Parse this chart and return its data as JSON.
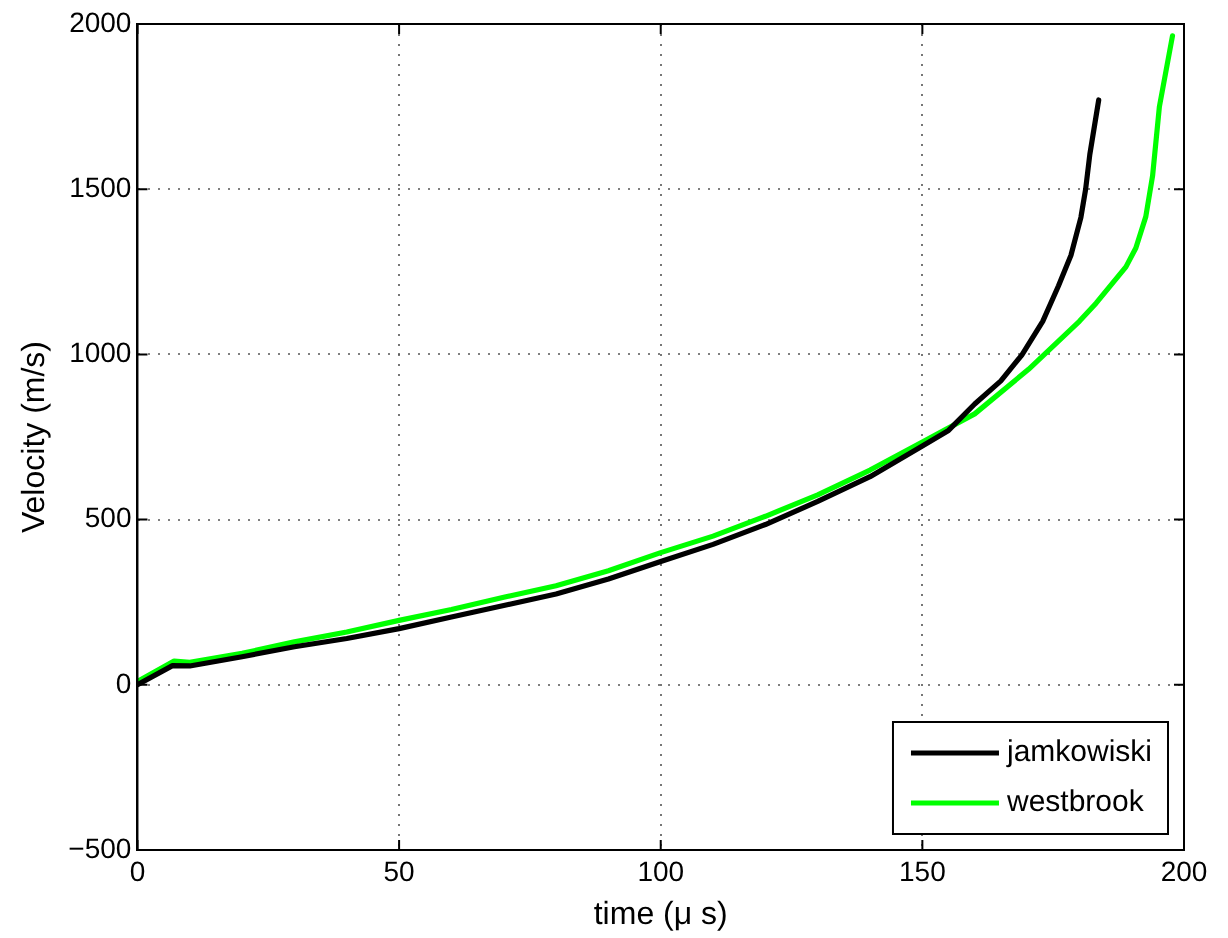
{
  "chart_data": {
    "type": "line",
    "xlabel": "time (μ s)",
    "ylabel": "Velocity (m/s)",
    "xlim": [
      0,
      200
    ],
    "xticks": [
      0,
      50,
      100,
      150,
      200
    ],
    "ylim": [
      -500,
      2000
    ],
    "yticks": [
      {
        "value": -500,
        "label": "−500"
      },
      0,
      500,
      1000,
      1500,
      2000
    ],
    "grid": true,
    "legend": "bottom right",
    "line_style": "solid",
    "marker": "none",
    "series": [
      {
        "name": "jamkowiski",
        "color": "#000000",
        "x": [
          0,
          6.7,
          10,
          20,
          30,
          40,
          50,
          60,
          70,
          80,
          90,
          100,
          110,
          120,
          130,
          140,
          150,
          155,
          160,
          165,
          169,
          173,
          176,
          178.4,
          180.3,
          181.2,
          182,
          183.7
        ],
        "values": [
          0,
          58,
          57,
          85,
          115,
          140,
          170,
          205,
          240,
          275,
          320,
          373,
          425,
          485,
          555,
          630,
          723,
          770,
          850,
          920,
          998,
          1100,
          1207,
          1300,
          1415,
          1500,
          1605,
          1770
        ]
      },
      {
        "name": "westbrook",
        "color": "#00ff00",
        "x": [
          0,
          7,
          10,
          20,
          30,
          40,
          50,
          60,
          70,
          80,
          90,
          100,
          110,
          120,
          130,
          140,
          150,
          160,
          170.3,
          180,
          183.2,
          188.9,
          190.8,
          192.7,
          194,
          195.3,
          197.8
        ],
        "values": [
          10,
          72,
          68,
          95,
          130,
          160,
          195,
          228,
          265,
          300,
          345,
          400,
          450,
          510,
          575,
          650,
          735,
          820,
          955,
          1100,
          1155,
          1265,
          1322,
          1417,
          1541,
          1750,
          1964
        ]
      }
    ]
  }
}
